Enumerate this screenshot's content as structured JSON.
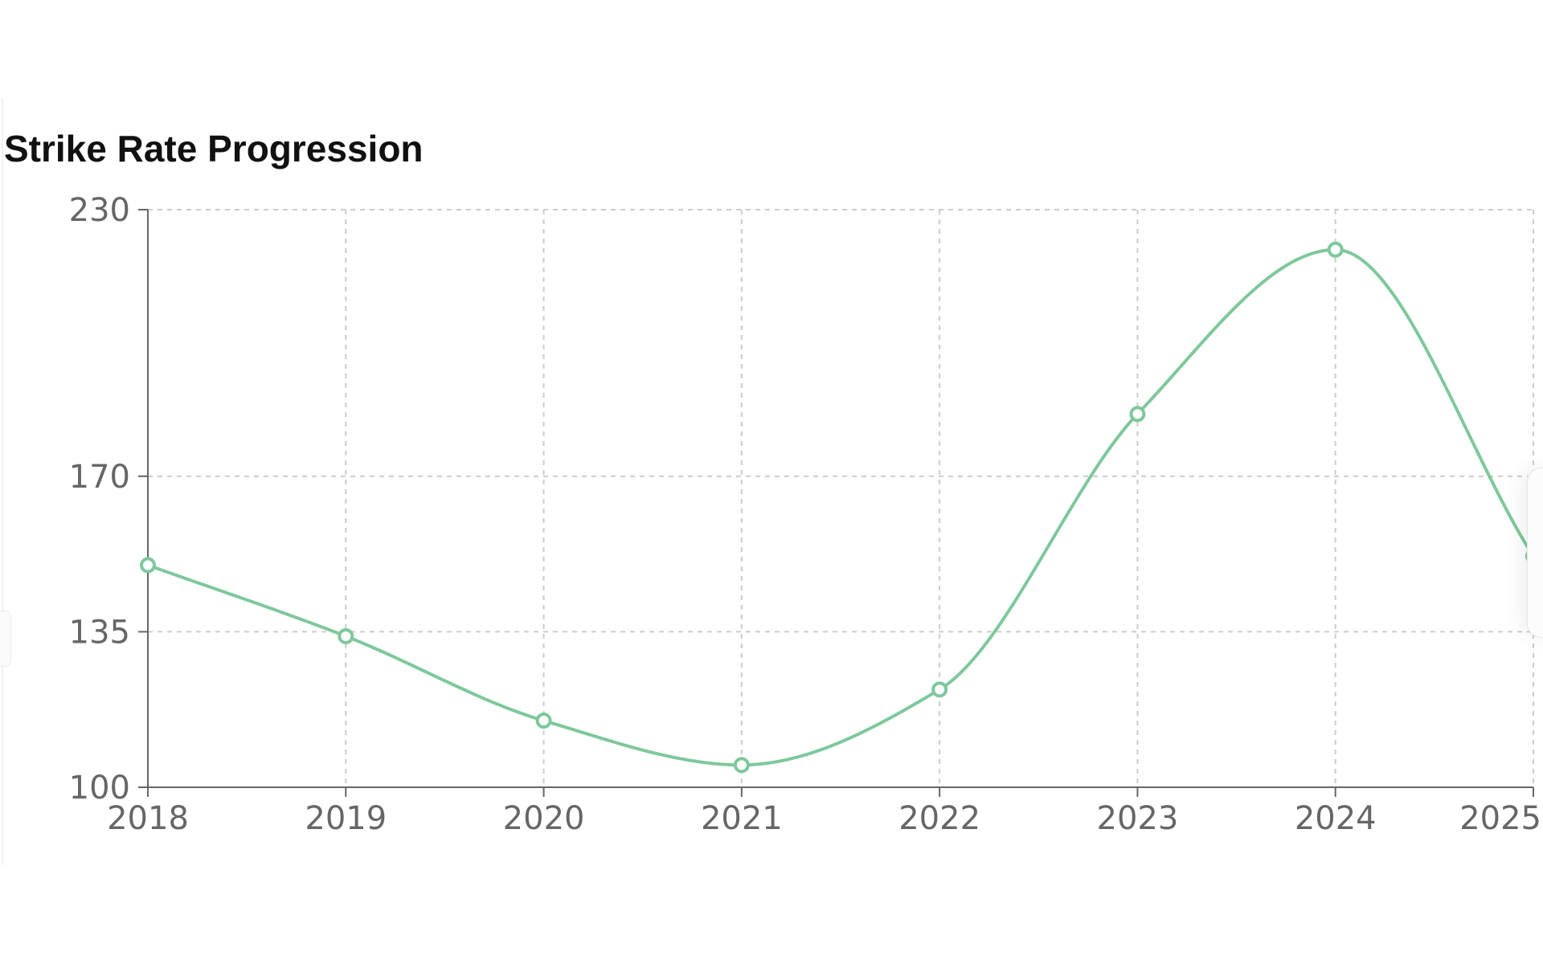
{
  "chart_data": {
    "type": "line",
    "title": "Strike Rate Progression",
    "x": [
      "2018",
      "2019",
      "2020",
      "2021",
      "2022",
      "2023",
      "2024",
      "2025"
    ],
    "series": [
      {
        "values": [
          150,
          134,
          115,
          105,
          122,
          184,
          221,
          152
        ],
        "color": "#7ec89b"
      }
    ],
    "yticks": [
      100,
      135,
      170,
      230
    ],
    "ylim": [
      100,
      230
    ],
    "grid": true,
    "grid_style": "dashed",
    "curve": "smooth",
    "xlabel": "",
    "ylabel": ""
  }
}
